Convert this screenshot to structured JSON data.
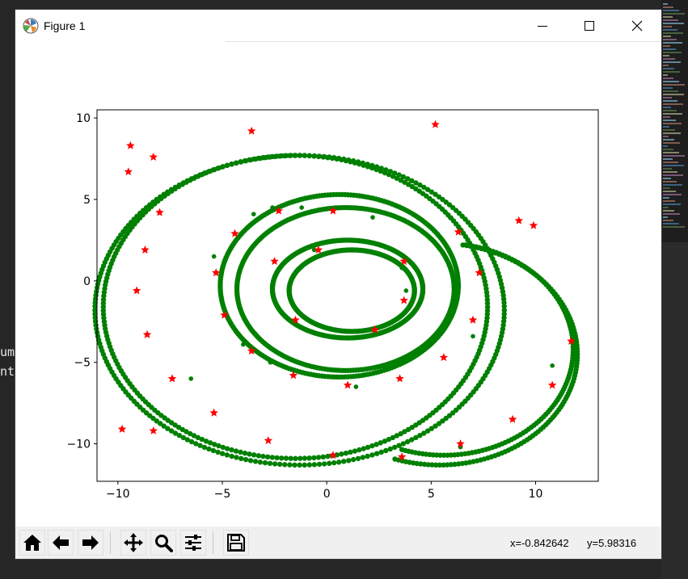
{
  "window": {
    "title": "Figure 1",
    "icon": "matplotlib-icon"
  },
  "toolbar": {
    "buttons": [
      {
        "name": "home-button",
        "icon": "home-icon"
      },
      {
        "name": "back-button",
        "icon": "arrow-left-icon"
      },
      {
        "name": "forward-button",
        "icon": "arrow-right-icon"
      },
      {
        "name": "pan-button",
        "icon": "move-icon"
      },
      {
        "name": "zoom-button",
        "icon": "zoom-icon"
      },
      {
        "name": "configure-subplots-button",
        "icon": "sliders-icon"
      },
      {
        "name": "save-button",
        "icon": "floppy-icon"
      }
    ],
    "x_readout": "x=-0.842642",
    "y_readout": "y=5.98316"
  },
  "background": {
    "terminal_lines": [
      "um",
      "nt"
    ]
  },
  "chart_data": {
    "type": "scatter",
    "title": "",
    "xlabel": "",
    "ylabel": "",
    "xlim": [
      -11,
      13
    ],
    "ylim": [
      -12.3,
      10.5
    ],
    "xticks": [
      -10,
      -5,
      0,
      5,
      10
    ],
    "xtick_labels": [
      "−10",
      "−5",
      "0",
      "5",
      "10"
    ],
    "yticks": [
      10,
      5,
      0,
      -5,
      -10
    ],
    "ytick_labels": [
      "10",
      "5",
      "0",
      "−5",
      "−10"
    ],
    "grid": false,
    "series": [
      {
        "marker": "circle",
        "color": "#008000",
        "shape": "curve",
        "description_rings": [
          {
            "cx": -1.5,
            "cy": -1.6,
            "rx": 9.2,
            "ry": 9.3
          },
          {
            "cx": -1.3,
            "cy": -1.8,
            "rx": 9.8,
            "ry": 9.5
          },
          {
            "cx": 0.9,
            "cy": -0.5,
            "rx": 5.2,
            "ry": 5.0
          },
          {
            "cx": 0.6,
            "cy": -0.3,
            "rx": 5.7,
            "ry": 5.6
          },
          {
            "cx": 1.2,
            "cy": -0.6,
            "rx": 3.0,
            "ry": 2.5
          },
          {
            "cx": 1.0,
            "cy": -0.5,
            "rx": 3.6,
            "ry": 3.0
          }
        ],
        "scattered_points": [
          [
            -3.5,
            4.1
          ],
          [
            -2.6,
            4.5
          ],
          [
            -1.2,
            4.5
          ],
          [
            2.2,
            3.9
          ],
          [
            5.9,
            3.9
          ],
          [
            -5.4,
            1.5
          ],
          [
            -5.3,
            0.5
          ],
          [
            -4.0,
            -3.9
          ],
          [
            -2.7,
            -5.0
          ],
          [
            1.4,
            -6.5
          ],
          [
            7.0,
            -3.4
          ],
          [
            10.8,
            -5.2
          ],
          [
            -0.6,
            1.9
          ],
          [
            3.6,
            0.8
          ],
          [
            3.8,
            -0.6
          ],
          [
            -6.5,
            -6.0
          ],
          [
            6.4,
            -10.2
          ]
        ]
      },
      {
        "marker": "star",
        "color": "#ff0000",
        "points": [
          [
            -9.4,
            8.3
          ],
          [
            -8.3,
            7.6
          ],
          [
            -9.5,
            6.7
          ],
          [
            -3.6,
            9.2
          ],
          [
            5.2,
            9.6
          ],
          [
            -8.0,
            4.2
          ],
          [
            -2.3,
            4.3
          ],
          [
            0.3,
            4.3
          ],
          [
            -4.4,
            2.9
          ],
          [
            6.3,
            3.0
          ],
          [
            9.2,
            3.7
          ],
          [
            9.9,
            3.4
          ],
          [
            -8.7,
            1.9
          ],
          [
            -0.4,
            1.9
          ],
          [
            -2.5,
            1.2
          ],
          [
            3.7,
            1.2
          ],
          [
            -5.3,
            0.5
          ],
          [
            7.3,
            0.5
          ],
          [
            -9.1,
            -0.6
          ],
          [
            -4.9,
            -2.1
          ],
          [
            3.7,
            -1.2
          ],
          [
            -1.5,
            -2.4
          ],
          [
            7.0,
            -2.4
          ],
          [
            -8.6,
            -3.3
          ],
          [
            2.3,
            -3.0
          ],
          [
            -3.6,
            -4.3
          ],
          [
            5.6,
            -4.7
          ],
          [
            -1.6,
            -5.8
          ],
          [
            3.5,
            -6.0
          ],
          [
            1.0,
            -6.4
          ],
          [
            -7.4,
            -6.0
          ],
          [
            10.8,
            -6.4
          ],
          [
            -5.4,
            -8.1
          ],
          [
            11.7,
            -3.7
          ],
          [
            8.9,
            -8.5
          ],
          [
            -9.8,
            -9.1
          ],
          [
            -8.3,
            -9.2
          ],
          [
            -2.8,
            -9.8
          ],
          [
            6.4,
            -10.0
          ],
          [
            0.3,
            -10.7
          ],
          [
            3.6,
            -10.8
          ]
        ]
      }
    ]
  }
}
